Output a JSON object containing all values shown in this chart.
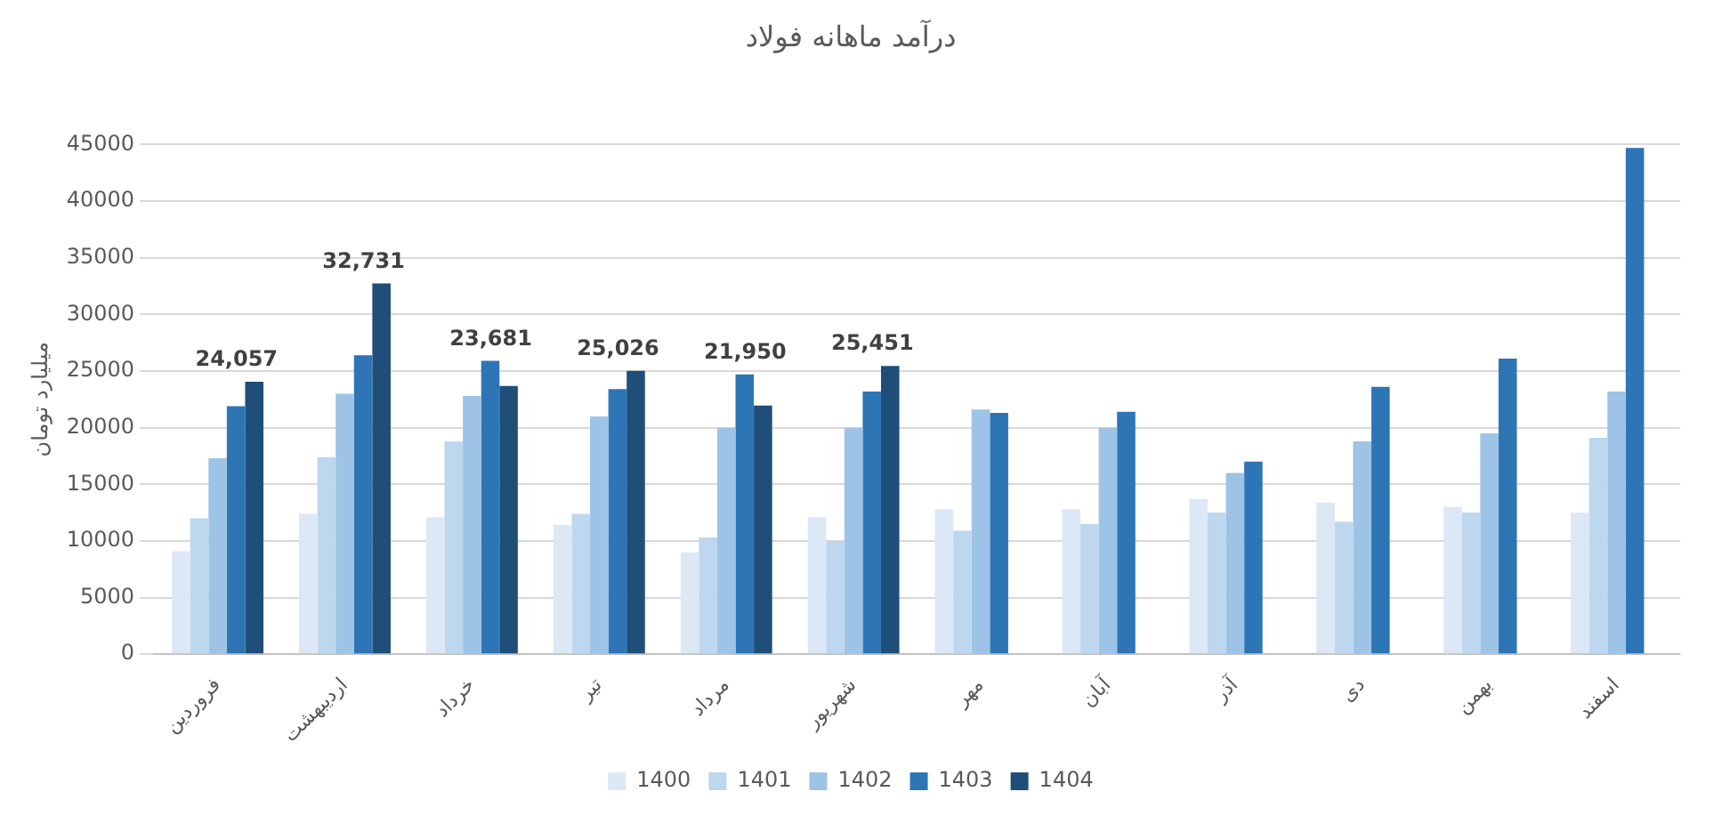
{
  "chart_data": {
    "type": "bar",
    "title": "درآمد ماهانه فولاد",
    "ylabel": "میلیارد تومان",
    "categories": [
      "فروردین",
      "اردیبهشت",
      "خرداد",
      "تیر",
      "مرداد",
      "شهریور",
      "مهر",
      "آبان",
      "آذر",
      "دی",
      "بهمن",
      "اسفند"
    ],
    "series": [
      {
        "name": "1400",
        "color": "#dce8f6",
        "values": [
          9100,
          12400,
          12100,
          11400,
          9000,
          12100,
          12800,
          12800,
          13700,
          13400,
          13000,
          12500
        ]
      },
      {
        "name": "1401",
        "color": "#bdd7ee",
        "values": [
          12000,
          17400,
          18800,
          12400,
          10300,
          10000,
          10900,
          11500,
          12500,
          11700,
          12500,
          19100
        ]
      },
      {
        "name": "1402",
        "color": "#9dc3e6",
        "values": [
          17300,
          23000,
          22800,
          21000,
          20000,
          20000,
          21600,
          20000,
          16000,
          18800,
          19500,
          23200
        ]
      },
      {
        "name": "1403",
        "color": "#2e75b6",
        "values": [
          21900,
          26400,
          25900,
          23400,
          24700,
          23200,
          21300,
          21400,
          17000,
          23600,
          26100,
          44700
        ]
      },
      {
        "name": "1404",
        "color": "#1f4e79",
        "values": [
          24057,
          32731,
          23681,
          25026,
          21950,
          25451,
          null,
          null,
          null,
          null,
          null,
          null
        ],
        "value_labels": [
          "24,057",
          "32,731",
          "23,681",
          "25,026",
          "21,950",
          "25,451",
          null,
          null,
          null,
          null,
          null,
          null
        ]
      }
    ],
    "ylim": [
      0,
      45000
    ],
    "yticks": [
      0,
      5000,
      10000,
      15000,
      20000,
      25000,
      30000,
      35000,
      40000,
      45000
    ],
    "grid": "y",
    "legend": "bottom"
  }
}
